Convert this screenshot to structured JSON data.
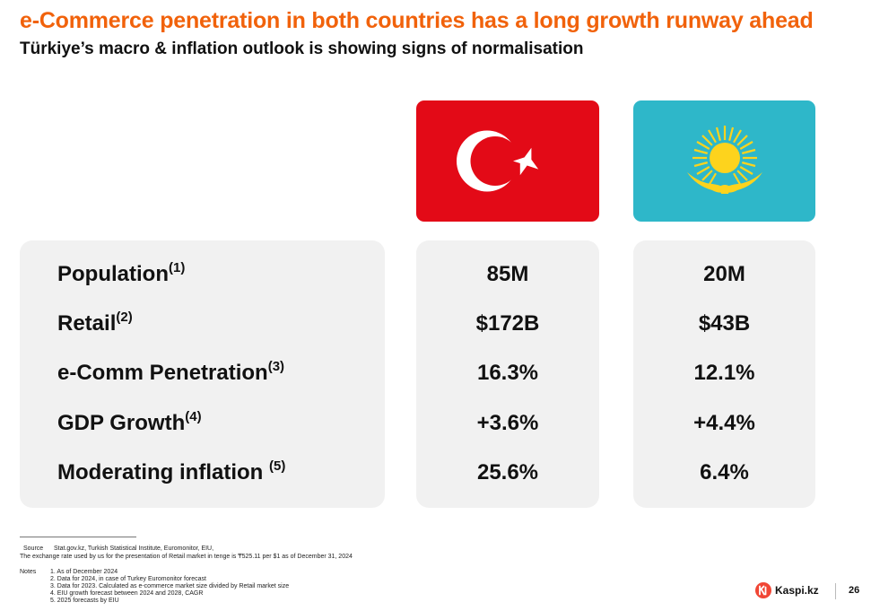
{
  "header": {
    "title": "e-Commerce penetration in both countries has a long growth runway ahead",
    "subtitle": "Türkiye’s macro & inflation outlook is showing signs of normalisation"
  },
  "colors": {
    "accent": "#f1620b",
    "turkey_red": "#e30a17",
    "kazakhstan_blue": "#2eb7c9",
    "kazakhstan_gold": "#fdd31d",
    "panel_bg": "#f1f1f1",
    "kaspi_red": "#f14635"
  },
  "flags": [
    {
      "country": "turkey",
      "icon": "turkey-flag-icon"
    },
    {
      "country": "kazakhstan",
      "icon": "kazakhstan-flag-icon"
    }
  ],
  "metrics": [
    {
      "label": "Population",
      "note": "(1)",
      "turkey": "85M",
      "kazakhstan": "20M"
    },
    {
      "label": "Retail",
      "note": "(2)",
      "turkey": "$172B",
      "kazakhstan": "$43B"
    },
    {
      "label": "e-Comm Penetration",
      "note": "(3)",
      "turkey": "16.3%",
      "kazakhstan": "12.1%"
    },
    {
      "label": "GDP Growth",
      "note": "(4)",
      "turkey": "+3.6%",
      "kazakhstan": "+4.4%"
    },
    {
      "label": "Moderating inflation ",
      "note": "(5)",
      "turkey": "25.6%",
      "kazakhstan": "6.4%"
    }
  ],
  "footer": {
    "source_label": "Source",
    "source_text": "Stat.gov.kz, Turkish Statistical Institute, Euromonitor, EIU,",
    "exchange_note": "The exchange rate used by us for the presentation of Retail market in tenge is ₸525.11 per $1 as of December 31, 2024",
    "notes_label": "Notes",
    "notes": [
      "1.  As of December 2024",
      "2.  Data for 2024, in case of Turkey Euromonitor forecast",
      "3.  Data for 2023. Calculated as e-commerce market size divided by Retail market size",
      "4.  EIU growth forecast between 2024 and 2028, CAGR",
      "5.  2025 forecasts by EIU"
    ],
    "logo_text": "Kaspi.kz",
    "logo_icon": "kaspi-logo-icon",
    "page_number": "26"
  }
}
